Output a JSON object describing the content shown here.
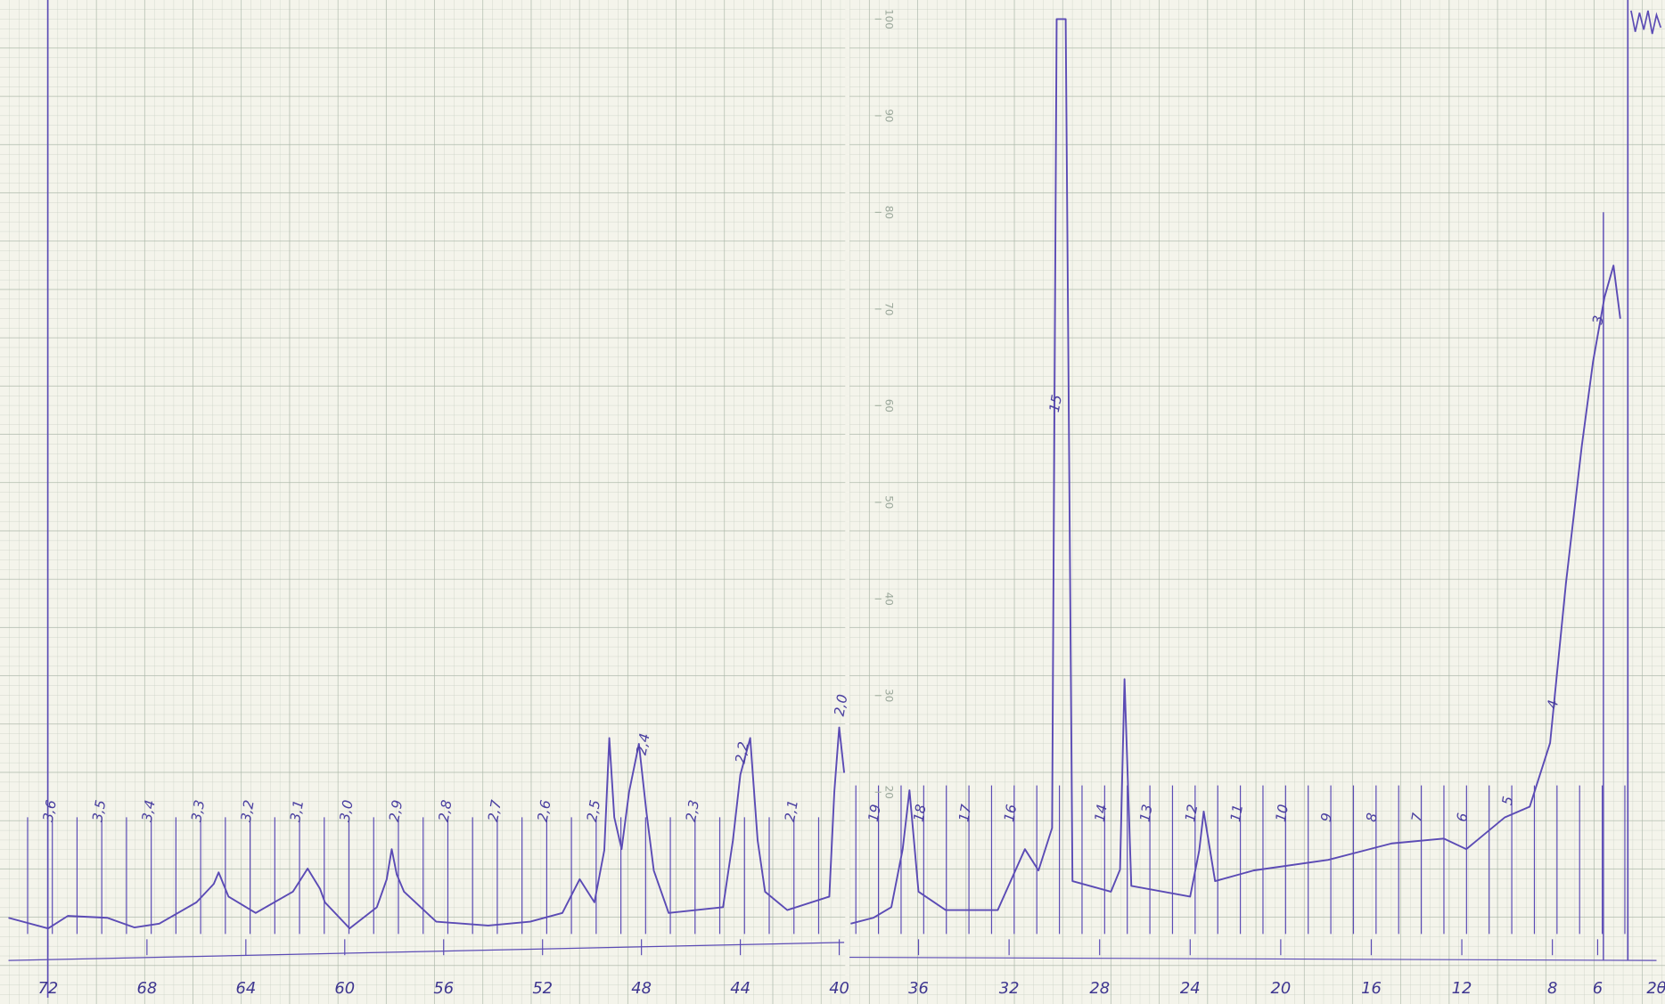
{
  "chart_data": [
    {
      "type": "line",
      "x": [
        73.6,
        72,
        71.2,
        69.6,
        68.5,
        67.5,
        66.0,
        65.3,
        65.1,
        64.7,
        63.6,
        62.1,
        61.5,
        61.0,
        60.8,
        59.8,
        58.7,
        58.3,
        58.1,
        57.9,
        57.6,
        56.3,
        54.2,
        52.5,
        51.2,
        50.5,
        49.9,
        49.5,
        49.3,
        49.1,
        48.8,
        48.5,
        48.1,
        47.8,
        47.5,
        46.9,
        44.7,
        44.3,
        44.0,
        43.6,
        43.3,
        43.0,
        42.1,
        40.4,
        40.2,
        40.0,
        39.8
      ],
      "series": [
        {
          "color": "#5b4bb5",
          "values": [
            7.0,
            5.9,
            7.2,
            7.0,
            6.0,
            6.4,
            8.6,
            10.5,
            11.7,
            9.2,
            7.5,
            9.7,
            12.1,
            10.0,
            8.6,
            5.9,
            8.1,
            11.0,
            14.1,
            11.5,
            9.7,
            6.6,
            6.2,
            6.6,
            7.5,
            11.0,
            8.6,
            14.0,
            25.6,
            17.4,
            14.1,
            20.0,
            25.0,
            18.0,
            11.9,
            7.5,
            8.1,
            15.0,
            21.8,
            25.6,
            15.0,
            9.7,
            7.8,
            9.2,
            20.0,
            26.7,
            22.0
          ]
        }
      ],
      "xlim": [
        73.6,
        39.8
      ],
      "ylim": [
        5,
        100
      ],
      "xticks": [
        72,
        68,
        64,
        60,
        56,
        52,
        48,
        44,
        40
      ],
      "annotations": [
        {
          "text": "3,6",
          "x": 72
        },
        {
          "text": "3,5",
          "x": 70
        },
        {
          "text": "3,4",
          "x": 68
        },
        {
          "text": "3,3",
          "x": 66
        },
        {
          "text": "3,2",
          "x": 64
        },
        {
          "text": "3,1",
          "x": 62
        },
        {
          "text": "3,0",
          "x": 60
        },
        {
          "text": "2,9",
          "x": 58
        },
        {
          "text": "2,8",
          "x": 56
        },
        {
          "text": "2,7",
          "x": 54
        },
        {
          "text": "2,6",
          "x": 52
        },
        {
          "text": "2,5",
          "x": 50
        },
        {
          "text": "2,4",
          "x": 48
        },
        {
          "text": "2,3",
          "x": 46
        },
        {
          "text": "2,2",
          "x": 44
        },
        {
          "text": "2,1",
          "x": 42
        },
        {
          "text": "2,0",
          "x": 40
        }
      ]
    },
    {
      "type": "line",
      "x": [
        39.0,
        38.0,
        37.2,
        36.7,
        36.4,
        36.0,
        34.8,
        32.5,
        31.3,
        30.7,
        30.1,
        29.9,
        29.5,
        29.2,
        27.5,
        27.1,
        26.9,
        26.6,
        24.0,
        23.6,
        23.4,
        22.9,
        21.2,
        17.9,
        15.1,
        12.8,
        11.8,
        10.1,
        9.0,
        8.1,
        7.4,
        6.7,
        6.2,
        5.7,
        5.3,
        5.0
      ],
      "series": [
        {
          "color": "#5b4bb5",
          "values": [
            6.4,
            7.0,
            8.1,
            14.1,
            20.2,
            9.7,
            7.8,
            7.8,
            14.1,
            11.9,
            16.3,
            100,
            100,
            10.8,
            9.7,
            12.0,
            31.7,
            10.3,
            9.2,
            14.0,
            18.0,
            10.8,
            11.9,
            13.0,
            14.7,
            15.2,
            14.1,
            17.4,
            18.5,
            25.1,
            41.6,
            55.8,
            64.6,
            71.2,
            74.5,
            69.0
          ]
        }
      ],
      "xlim": [
        39.05,
        3.4
      ],
      "ylim": [
        5,
        100
      ],
      "xticks": [
        36,
        32,
        28,
        24,
        20,
        16,
        12,
        8,
        6
      ],
      "yticks": [
        20,
        30,
        40,
        50,
        60,
        70,
        80,
        90,
        100
      ],
      "x_label": "2θ",
      "annotations": [
        {
          "text": "19",
          "x": 38
        },
        {
          "text": "18",
          "x": 36
        },
        {
          "text": "17",
          "x": 34
        },
        {
          "text": "16",
          "x": 32
        },
        {
          "text": "15",
          "x": 30
        },
        {
          "text": "14",
          "x": 28
        },
        {
          "text": "13",
          "x": 26
        },
        {
          "text": "12",
          "x": 24
        },
        {
          "text": "11",
          "x": 22
        },
        {
          "text": "10",
          "x": 20
        },
        {
          "text": "9",
          "x": 18
        },
        {
          "text": "8",
          "x": 16
        },
        {
          "text": "7",
          "x": 14
        },
        {
          "text": "6",
          "x": 12
        },
        {
          "text": "5",
          "x": 10
        },
        {
          "text": "4",
          "x": 8
        },
        {
          "text": "3",
          "x": 6
        }
      ]
    }
  ]
}
